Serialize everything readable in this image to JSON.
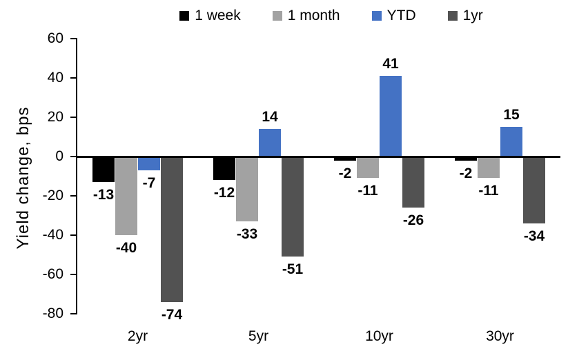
{
  "chart_data": {
    "type": "bar",
    "title": "",
    "xlabel": "",
    "ylabel": "Yield change, bps",
    "ylim": [
      -80,
      60
    ],
    "yticks": [
      60,
      40,
      20,
      0,
      -20,
      -40,
      -60,
      -80
    ],
    "grid": false,
    "legend_position": "top-center",
    "data_labels": true,
    "categories": [
      "2yr",
      "5yr",
      "10yr",
      "30yr"
    ],
    "series": [
      {
        "name": "1 week",
        "color": "#000000",
        "values": [
          -13,
          -12,
          -2,
          -2
        ]
      },
      {
        "name": "1 month",
        "color": "#a2a2a2",
        "values": [
          -40,
          -33,
          -11,
          -11
        ]
      },
      {
        "name": "YTD",
        "color": "#4472c4",
        "values": [
          -7,
          14,
          41,
          15
        ]
      },
      {
        "name": "1yr",
        "color": "#525252",
        "values": [
          -74,
          -51,
          -26,
          -34
        ]
      }
    ],
    "colors": {
      "axis": "#000000",
      "label_text": "#000000",
      "background": "#ffffff"
    }
  }
}
